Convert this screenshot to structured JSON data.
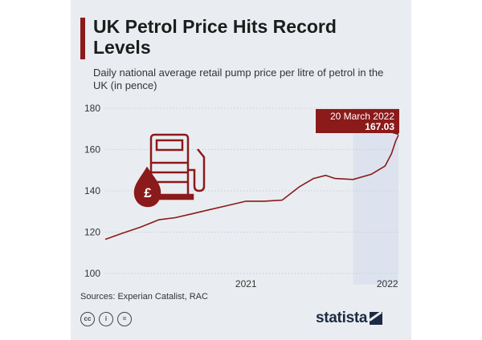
{
  "title": "UK Petrol Price Hits Record Levels",
  "subtitle": "Daily national average retail pump price per litre of petrol in the UK (in pence)",
  "source": "Sources: Experian Catalist, RAC",
  "brand": "statista",
  "license_icons": [
    "cc-icon",
    "person-icon",
    "equals-icon"
  ],
  "colors": {
    "line": "#8b1a1a",
    "accent": "#8b1a1a",
    "highlight_band": "#dde3ee",
    "grid": "#c9ced6"
  },
  "chart_data": {
    "type": "line",
    "title": "UK Petrol Price Hits Record Levels",
    "subtitle": "Daily national average retail pump price per litre of petrol in the UK (in pence)",
    "ylim": [
      100,
      180
    ],
    "yticks": [
      100,
      120,
      140,
      160,
      180
    ],
    "xlim": [
      "2020-11-01",
      "2022-03-20"
    ],
    "xticks": [
      {
        "date": "2021-07-01",
        "label": "2021"
      },
      {
        "date": "2022-03-01",
        "label": "2022"
      }
    ],
    "grid": true,
    "highlight_range": [
      "2022-01-01",
      "2022-03-20"
    ],
    "annotation": {
      "date_label": "20 March 2022",
      "value_label": "167.03",
      "value": 167.03
    },
    "series": [
      {
        "values": [
          {
            "x": "2020-11-01",
            "y": 116.5
          },
          {
            "x": "2020-12-01",
            "y": 119.5
          },
          {
            "x": "2021-01-01",
            "y": 122.5
          },
          {
            "x": "2021-02-01",
            "y": 126.0
          },
          {
            "x": "2021-03-01",
            "y": 127.0
          },
          {
            "x": "2021-04-01",
            "y": 129.0
          },
          {
            "x": "2021-05-01",
            "y": 131.0
          },
          {
            "x": "2021-06-01",
            "y": 133.0
          },
          {
            "x": "2021-07-01",
            "y": 135.0
          },
          {
            "x": "2021-08-01",
            "y": 135.0
          },
          {
            "x": "2021-09-01",
            "y": 135.5
          },
          {
            "x": "2021-10-01",
            "y": 142.0
          },
          {
            "x": "2021-10-25",
            "y": 146.0
          },
          {
            "x": "2021-11-15",
            "y": 147.5
          },
          {
            "x": "2021-12-01",
            "y": 146.0
          },
          {
            "x": "2022-01-01",
            "y": 145.5
          },
          {
            "x": "2022-02-01",
            "y": 148.0
          },
          {
            "x": "2022-02-25",
            "y": 152.0
          },
          {
            "x": "2022-03-08",
            "y": 158.0
          },
          {
            "x": "2022-03-15",
            "y": 164.0
          },
          {
            "x": "2022-03-20",
            "y": 167.03
          }
        ]
      }
    ]
  }
}
